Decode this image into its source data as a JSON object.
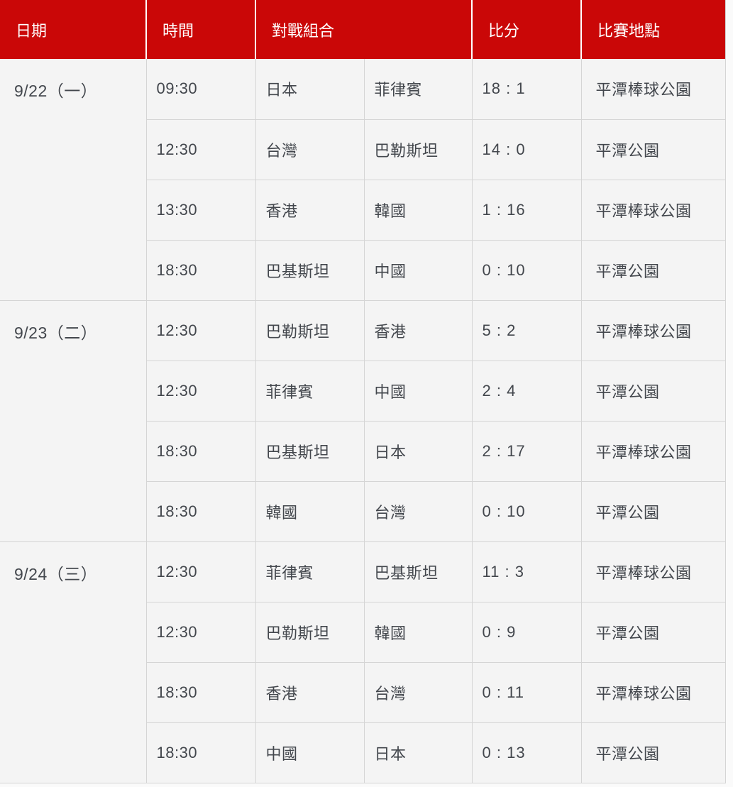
{
  "theme": {
    "header_bg": "#ca0707",
    "header_text": "#ffffff",
    "body_bg": "#f4f4f4",
    "border": "#d5d5d5",
    "text": "#43474d",
    "page_bg": "#fafafa"
  },
  "table": {
    "columns": {
      "date": "日期",
      "time": "時間",
      "matchup": "對戰組合",
      "score": "比分",
      "venue": "比賽地點"
    },
    "groups": [
      {
        "date": "9/22（一）",
        "matches": [
          {
            "time": "09:30",
            "team1": "日本",
            "team2": "菲律賓",
            "score": "18 : 1",
            "venue": "平潭棒球公園"
          },
          {
            "time": "12:30",
            "team1": "台灣",
            "team2": "巴勒斯坦",
            "score": "14 : 0",
            "venue": "平潭公園"
          },
          {
            "time": "13:30",
            "team1": "香港",
            "team2": "韓國",
            "score": "1 : 16",
            "venue": "平潭棒球公園"
          },
          {
            "time": "18:30",
            "team1": "巴基斯坦",
            "team2": "中國",
            "score": "0 : 10",
            "venue": "平潭公園"
          }
        ]
      },
      {
        "date": "9/23（二）",
        "matches": [
          {
            "time": "12:30",
            "team1": "巴勒斯坦",
            "team2": "香港",
            "score": "5 : 2",
            "venue": "平潭棒球公園"
          },
          {
            "time": "12:30",
            "team1": "菲律賓",
            "team2": "中國",
            "score": "2 : 4",
            "venue": "平潭公園"
          },
          {
            "time": "18:30",
            "team1": "巴基斯坦",
            "team2": "日本",
            "score": "2 : 17",
            "venue": "平潭棒球公園"
          },
          {
            "time": "18:30",
            "team1": "韓國",
            "team2": "台灣",
            "score": "0 : 10",
            "venue": "平潭公園"
          }
        ]
      },
      {
        "date": "9/24（三）",
        "matches": [
          {
            "time": "12:30",
            "team1": "菲律賓",
            "team2": "巴基斯坦",
            "score": "11 : 3",
            "venue": "平潭棒球公園"
          },
          {
            "time": "12:30",
            "team1": "巴勒斯坦",
            "team2": "韓國",
            "score": "0 : 9",
            "venue": "平潭公園"
          },
          {
            "time": "18:30",
            "team1": "香港",
            "team2": "台灣",
            "score": "0 : 11",
            "venue": "平潭棒球公園"
          },
          {
            "time": "18:30",
            "team1": "中國",
            "team2": "日本",
            "score": "0 : 13",
            "venue": "平潭公園"
          }
        ]
      }
    ]
  }
}
